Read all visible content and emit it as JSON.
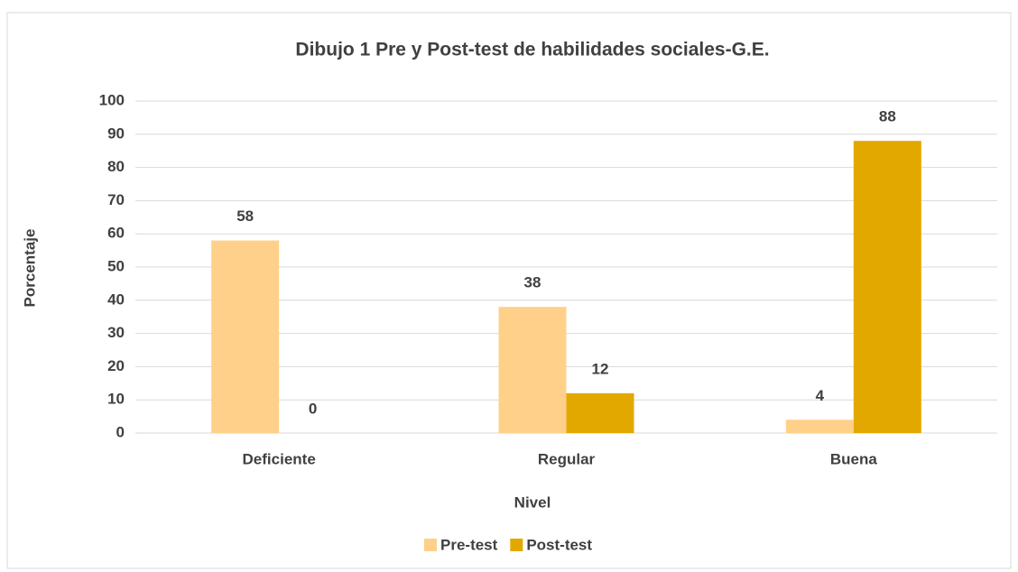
{
  "chart_data": {
    "type": "bar",
    "title": "Dibujo 1 Pre y Post-test de habilidades sociales-G.E.",
    "x_label": "Nivel",
    "y_label": "Porcentaje",
    "categories": [
      "Deficiente",
      "Regular",
      "Buena"
    ],
    "series": [
      {
        "name": "Pre-test",
        "color": "#ffd08a",
        "values": [
          58,
          38,
          4
        ]
      },
      {
        "name": "Post-test",
        "color": "#e3a800",
        "values": [
          0,
          12,
          88
        ]
      }
    ],
    "ylim": [
      0,
      100
    ],
    "yticks": [
      0,
      10,
      20,
      30,
      40,
      50,
      60,
      70,
      80,
      90,
      100
    ],
    "grid": true,
    "legend": "bottom"
  }
}
